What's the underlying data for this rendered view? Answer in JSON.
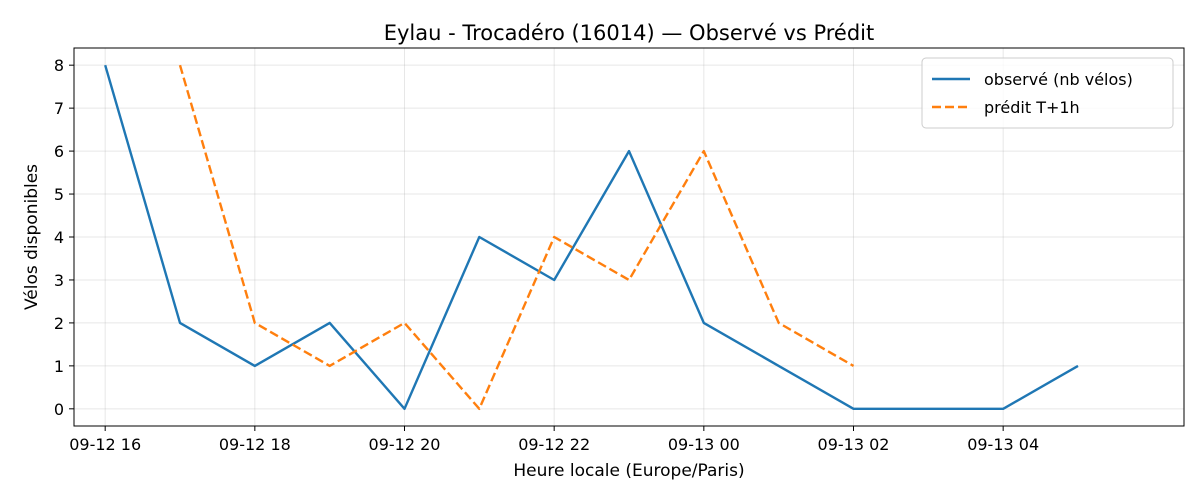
{
  "chart_data": {
    "type": "line",
    "title": "Eylau - Trocadéro (16014) — Observé vs Prédit",
    "xlabel": "Heure locale (Europe/Paris)",
    "ylabel": "Vélos disponibles",
    "x_tick_labels": [
      "09-12 16",
      "09-12 18",
      "09-12 20",
      "09-12 22",
      "09-13 00",
      "09-13 02",
      "09-13 04"
    ],
    "x_ticks": [
      "2024-09-12 16:00",
      "2024-09-12 18:00",
      "2024-09-12 20:00",
      "2024-09-12 22:00",
      "2024-09-13 00:00",
      "2024-09-13 02:00",
      "2024-09-13 04:00"
    ],
    "xlim": [
      "2024-09-12 15:35",
      "2024-09-13 06:25"
    ],
    "y_ticks": [
      0,
      1,
      2,
      3,
      4,
      5,
      6,
      7,
      8
    ],
    "ylim": [
      -0.4,
      8.4
    ],
    "grid": true,
    "legend_position": "top-right",
    "series": [
      {
        "name": "observé (nb vélos)",
        "color": "#1f77b4",
        "style": "solid",
        "x": [
          "2024-09-12 16:00",
          "2024-09-12 17:00",
          "2024-09-12 18:00",
          "2024-09-12 19:00",
          "2024-09-12 20:00",
          "2024-09-12 21:00",
          "2024-09-12 22:00",
          "2024-09-12 23:00",
          "2024-09-13 00:00",
          "2024-09-13 01:00",
          "2024-09-13 02:00",
          "2024-09-13 03:00",
          "2024-09-13 04:00",
          "2024-09-13 05:00"
        ],
        "y": [
          8,
          2,
          1,
          2,
          0,
          4,
          3,
          6,
          2,
          1,
          0,
          0,
          0,
          1
        ]
      },
      {
        "name": "prédit T+1h",
        "color": "#ff7f0e",
        "style": "dashed",
        "x": [
          "2024-09-12 17:00",
          "2024-09-12 18:00",
          "2024-09-12 19:00",
          "2024-09-12 20:00",
          "2024-09-12 21:00",
          "2024-09-12 22:00",
          "2024-09-12 23:00",
          "2024-09-13 00:00",
          "2024-09-13 01:00",
          "2024-09-13 02:00"
        ],
        "y": [
          8,
          2,
          1,
          2,
          0,
          4,
          3,
          6,
          2,
          1
        ]
      }
    ]
  }
}
